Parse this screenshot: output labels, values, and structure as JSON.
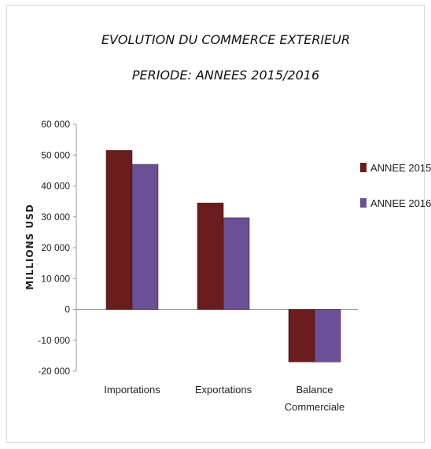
{
  "chart_data": {
    "type": "bar",
    "title": "EVOLUTION DU COMMERCE EXTERIEUR",
    "subtitle": "PERIODE: ANNEES 2015/2016",
    "ylabel": "MILLIONS USD",
    "xlabel": "",
    "categories": [
      [
        "Importations"
      ],
      [
        "Exportations"
      ],
      [
        "Balance",
        "Commerciale"
      ]
    ],
    "series": [
      {
        "name": "ANNEE 2015",
        "color": "#6b1c1c",
        "values": [
          51500,
          34500,
          -17000
        ]
      },
      {
        "name": "ANNEE 2016",
        "color": "#6a5096",
        "values": [
          47000,
          29700,
          -17000
        ]
      }
    ],
    "ylim": [
      -20000,
      60000
    ],
    "yticks": [
      {
        "value": 60000,
        "label": "60 000"
      },
      {
        "value": 50000,
        "label": "50 000"
      },
      {
        "value": 40000,
        "label": "40 000"
      },
      {
        "value": 30000,
        "label": "30 000"
      },
      {
        "value": 20000,
        "label": "20 000"
      },
      {
        "value": 10000,
        "label": "10 000"
      },
      {
        "value": 0,
        "label": "0"
      },
      {
        "value": -10000,
        "label": "-10 000"
      },
      {
        "value": -20000,
        "label": "-20 000"
      }
    ],
    "grid": false,
    "legend_position": "right"
  }
}
